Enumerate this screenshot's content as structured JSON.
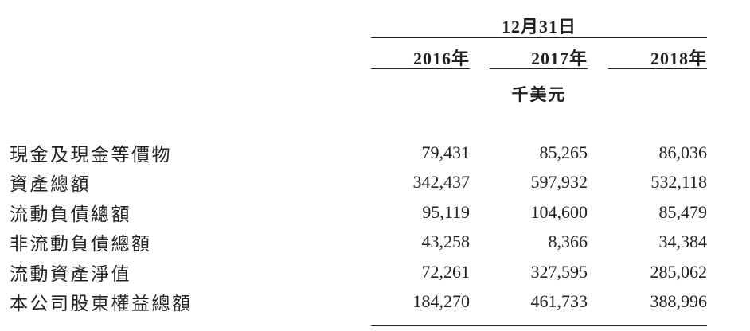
{
  "table": {
    "date_header": "12月31日",
    "unit": "千美元",
    "years": [
      "2016年",
      "2017年",
      "2018年"
    ],
    "rows": [
      {
        "label": "現金及現金等價物",
        "values": [
          "79,431",
          "85,265",
          "86,036"
        ]
      },
      {
        "label": "資產總額",
        "values": [
          "342,437",
          "597,932",
          "532,118"
        ]
      },
      {
        "label": "流動負債總額",
        "values": [
          "95,119",
          "104,600",
          "85,479"
        ]
      },
      {
        "label": "非流動負債總額",
        "values": [
          "43,258",
          "8,366",
          "34,384"
        ]
      },
      {
        "label": "流動資產淨值",
        "values": [
          "72,261",
          "327,595",
          "285,062"
        ]
      },
      {
        "label": "本公司股東權益總額",
        "values": [
          "184,270",
          "461,733",
          "388,996"
        ]
      }
    ]
  },
  "colors": {
    "text": "#231f20",
    "rule": "#231f20",
    "background": "#ffffff"
  }
}
